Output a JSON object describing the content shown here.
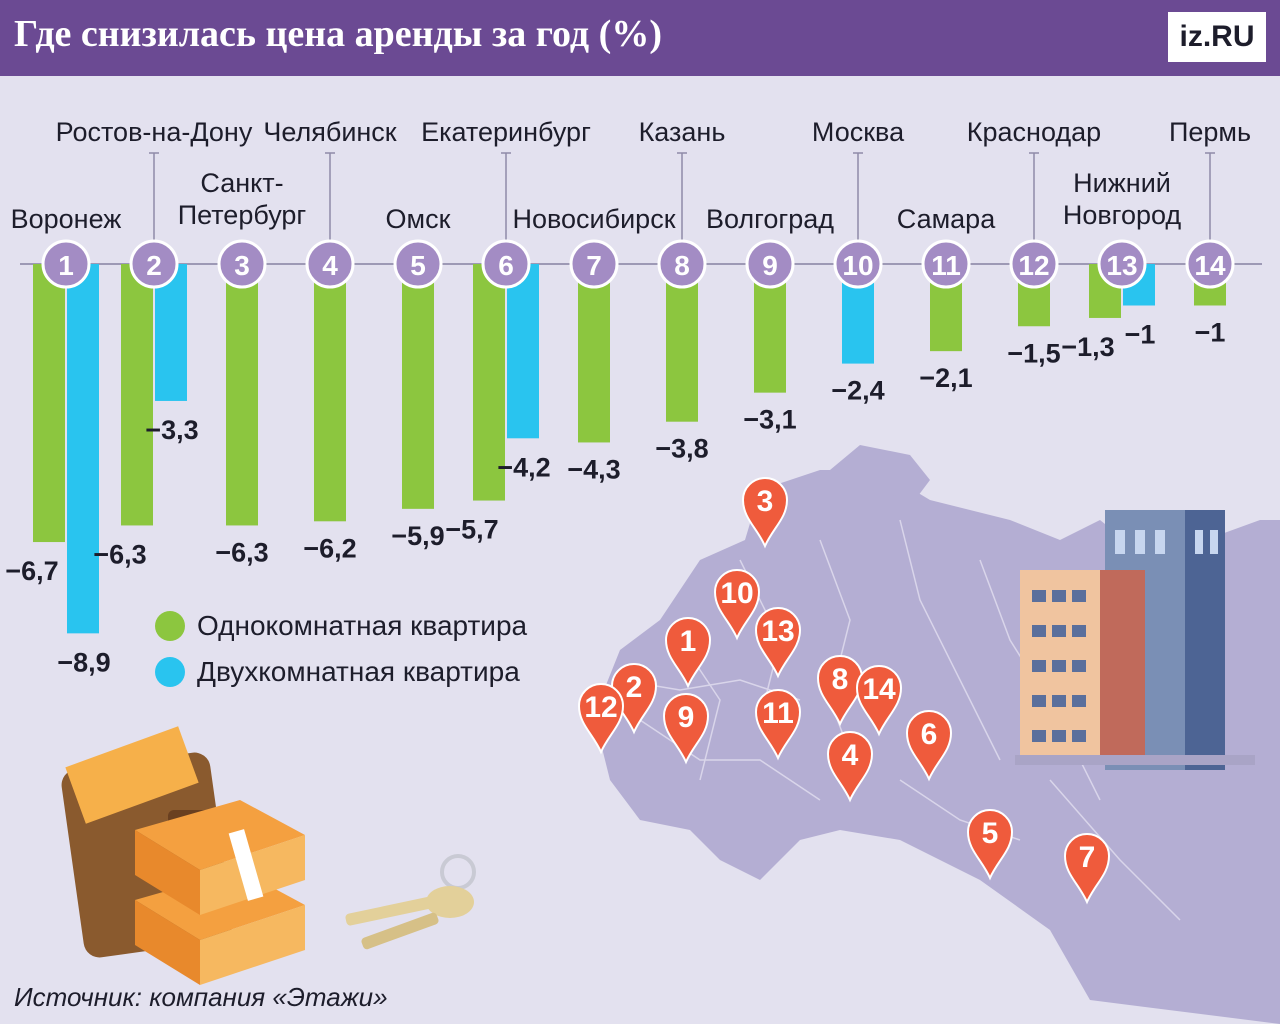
{
  "header": {
    "title": "Где снизилась цена аренды за год (%)",
    "logo": "iz",
    "logo_suffix": ".RU"
  },
  "source": "Источник: компания «Этажи»",
  "colors": {
    "header_bg": "#6b4a93",
    "one_room": "#8cc63f",
    "two_room": "#29c4ef",
    "marker": "#ef5b3c",
    "badge": "#a38cc4",
    "map_fill": "#b4aed3"
  },
  "chart_data": {
    "type": "bar",
    "title": "Где снизилась цена аренды за год (%)",
    "categories": [
      "Воронеж",
      "Ростов-на-Дону",
      "Санкт-Петербург",
      "Челябинск",
      "Омск",
      "Екатеринбург",
      "Новосибирск",
      "Казань",
      "Волгоград",
      "Москва",
      "Самара",
      "Краснодар",
      "Нижний Новгород",
      "Пермь"
    ],
    "numbers": [
      "1",
      "2",
      "3",
      "4",
      "5",
      "6",
      "7",
      "8",
      "9",
      "10",
      "11",
      "12",
      "13",
      "14"
    ],
    "category_lines": [
      [
        "Воронеж"
      ],
      [
        "Ростов-на-Дону"
      ],
      [
        "Санкт-",
        "Петербург"
      ],
      [
        "Челябинск"
      ],
      [
        "Омск"
      ],
      [
        "Екатеринбург"
      ],
      [
        "Новосибирск"
      ],
      [
        "Казань"
      ],
      [
        "Волгоград"
      ],
      [
        "Москва"
      ],
      [
        "Самара"
      ],
      [
        "Краснодар"
      ],
      [
        "Нижний",
        "Новгород"
      ],
      [
        "Пермь"
      ]
    ],
    "series": [
      {
        "name": "Однокомнатная квартира",
        "values": [
          -6.7,
          -6.3,
          -6.3,
          -6.2,
          -5.9,
          -5.7,
          -4.3,
          -3.8,
          -3.1,
          null,
          -2.1,
          -1.5,
          -1.3,
          -1
        ]
      },
      {
        "name": "Двухкомнатная квартира",
        "values": [
          -8.9,
          -3.3,
          null,
          null,
          null,
          -4.2,
          null,
          null,
          null,
          -2.4,
          null,
          null,
          -1,
          null
        ]
      }
    ],
    "value_labels": [
      [
        "−6,7",
        "−6,3",
        "−6,3",
        "−6,2",
        "−5,9",
        "−5,7",
        "−4,3",
        "−3,8",
        "−3,1",
        null,
        "−2,1",
        "−1,5",
        "−1,3",
        "−1"
      ],
      [
        "−8,9",
        "−3,3",
        null,
        null,
        null,
        "−4,2",
        null,
        null,
        null,
        "−2,4",
        null,
        null,
        "−1",
        null
      ]
    ],
    "legend": [
      "Однокомнатная квартира",
      "Двухкомнатная квартира"
    ],
    "legend_position": "left, below bars",
    "ylim": [
      -9,
      0
    ],
    "grid": false
  },
  "map_markers": [
    "3",
    "10",
    "1",
    "13",
    "2",
    "12",
    "9",
    "11",
    "8",
    "14",
    "4",
    "6",
    "5",
    "7"
  ]
}
